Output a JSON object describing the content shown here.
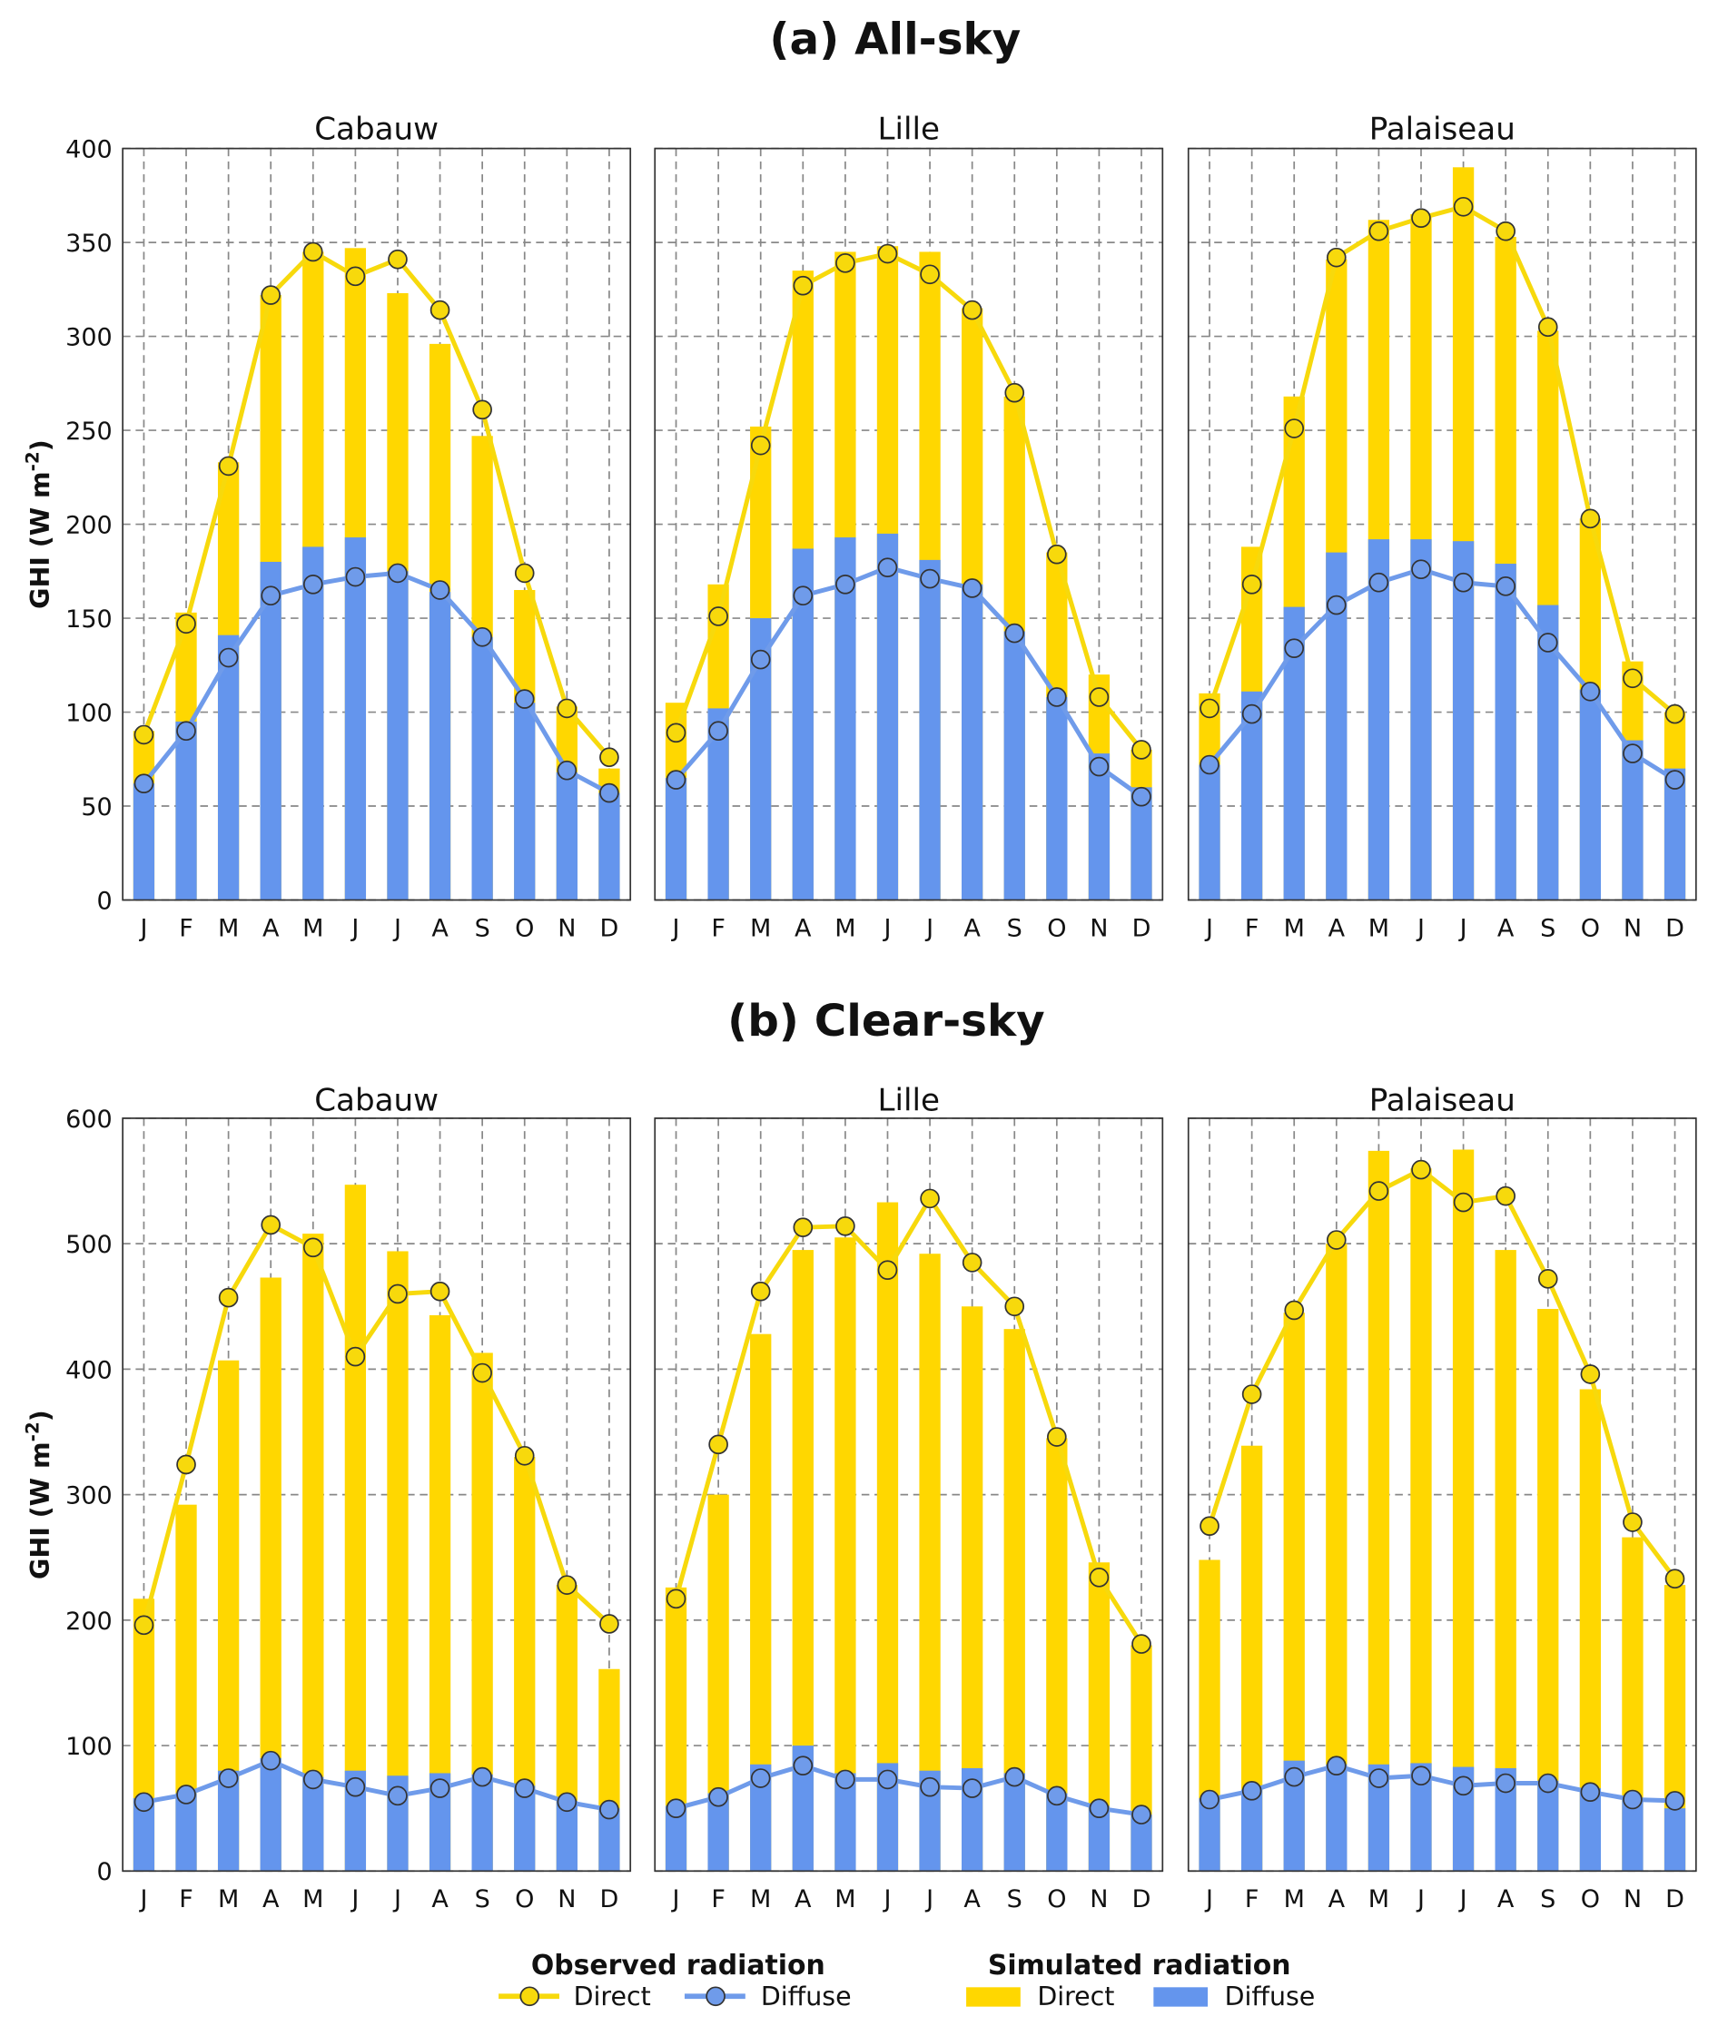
{
  "sections": [
    {
      "title": "(a) All-sky",
      "ylabel": "GHI (W m",
      "ylabel_sup": "-2",
      "ylabel_end": ")",
      "ylim": [
        0,
        400
      ],
      "yticks": [
        0,
        50,
        100,
        150,
        200,
        250,
        300,
        350,
        400
      ]
    },
    {
      "title": "(b) Clear-sky",
      "ylabel": "GHI (W m",
      "ylabel_sup": "-2",
      "ylabel_end": ")",
      "ylim": [
        0,
        600
      ],
      "yticks": [
        0,
        100,
        200,
        300,
        400,
        500,
        600
      ]
    }
  ],
  "legend": {
    "observed_title": "Observed radiation",
    "simulated_title": "Simulated radiation",
    "direct": "Direct",
    "diffuse": "Diffuse"
  },
  "colors": {
    "direct_bar": "#FFD700",
    "diffuse_bar": "#6495ED",
    "direct_line": "#F7D90C",
    "diffuse_line": "#6F9BEA",
    "marker_edge": "#333333"
  },
  "chart_data": [
    {
      "type": "bar+line",
      "section": 0,
      "title": "Cabauw",
      "categories": [
        "J",
        "F",
        "M",
        "A",
        "M",
        "J",
        "J",
        "A",
        "S",
        "O",
        "N",
        "D"
      ],
      "simulated_total": [
        90,
        153,
        233,
        322,
        345,
        347,
        323,
        296,
        247,
        165,
        103,
        70
      ],
      "simulated_diffuse": [
        62,
        95,
        141,
        180,
        188,
        193,
        175,
        164,
        140,
        105,
        68,
        57
      ],
      "observed_direct": [
        88,
        147,
        231,
        322,
        345,
        332,
        341,
        314,
        261,
        174,
        102,
        76
      ],
      "observed_diffuse": [
        62,
        90,
        129,
        162,
        168,
        172,
        174,
        165,
        140,
        107,
        69,
        57
      ]
    },
    {
      "type": "bar+line",
      "section": 0,
      "title": "Lille",
      "categories": [
        "J",
        "F",
        "M",
        "A",
        "M",
        "J",
        "J",
        "A",
        "S",
        "O",
        "N",
        "D"
      ],
      "simulated_total": [
        105,
        168,
        252,
        335,
        345,
        348,
        345,
        315,
        268,
        185,
        120,
        80
      ],
      "simulated_diffuse": [
        65,
        102,
        150,
        187,
        193,
        195,
        181,
        168,
        143,
        108,
        78,
        60
      ],
      "observed_direct": [
        89,
        151,
        242,
        327,
        339,
        344,
        333,
        314,
        270,
        184,
        108,
        80
      ],
      "observed_diffuse": [
        64,
        90,
        128,
        162,
        168,
        177,
        171,
        166,
        142,
        108,
        71,
        55
      ]
    },
    {
      "type": "bar+line",
      "section": 0,
      "title": "Palaiseau",
      "categories": [
        "J",
        "F",
        "M",
        "A",
        "M",
        "J",
        "J",
        "A",
        "S",
        "O",
        "N",
        "D"
      ],
      "simulated_total": [
        110,
        188,
        268,
        341,
        362,
        365,
        390,
        353,
        303,
        203,
        127,
        100
      ],
      "simulated_diffuse": [
        72,
        111,
        156,
        185,
        192,
        192,
        191,
        179,
        157,
        112,
        85,
        70
      ],
      "observed_direct": [
        102,
        168,
        251,
        342,
        356,
        363,
        369,
        356,
        305,
        203,
        118,
        99
      ],
      "observed_diffuse": [
        72,
        99,
        134,
        157,
        169,
        176,
        169,
        167,
        137,
        111,
        78,
        64
      ]
    },
    {
      "type": "bar+line",
      "section": 1,
      "title": "Cabauw",
      "categories": [
        "J",
        "F",
        "M",
        "A",
        "M",
        "J",
        "J",
        "A",
        "S",
        "O",
        "N",
        "D"
      ],
      "simulated_total": [
        217,
        292,
        407,
        473,
        508,
        547,
        494,
        443,
        413,
        330,
        228,
        161
      ],
      "simulated_diffuse": [
        58,
        62,
        80,
        90,
        75,
        80,
        76,
        78,
        77,
        68,
        56,
        50
      ],
      "observed_direct": [
        196,
        324,
        457,
        515,
        497,
        410,
        460,
        462,
        397,
        331,
        228,
        197
      ],
      "observed_diffuse": [
        55,
        61,
        74,
        88,
        73,
        67,
        60,
        66,
        75,
        66,
        55,
        49
      ]
    },
    {
      "type": "bar+line",
      "section": 1,
      "title": "Lille",
      "categories": [
        "J",
        "F",
        "M",
        "A",
        "M",
        "J",
        "J",
        "A",
        "S",
        "O",
        "N",
        "D"
      ],
      "simulated_total": [
        226,
        300,
        428,
        495,
        505,
        533,
        492,
        450,
        432,
        345,
        246,
        180
      ],
      "simulated_diffuse": [
        52,
        62,
        85,
        100,
        78,
        86,
        80,
        82,
        78,
        62,
        52,
        45
      ],
      "observed_direct": [
        217,
        340,
        462,
        513,
        514,
        479,
        536,
        485,
        450,
        346,
        234,
        181
      ],
      "observed_diffuse": [
        50,
        59,
        74,
        84,
        73,
        73,
        67,
        66,
        75,
        60,
        50,
        45
      ]
    },
    {
      "type": "bar+line",
      "section": 1,
      "title": "Palaiseau",
      "categories": [
        "J",
        "F",
        "M",
        "A",
        "M",
        "J",
        "J",
        "A",
        "S",
        "O",
        "N",
        "D"
      ],
      "simulated_total": [
        248,
        339,
        445,
        500,
        574,
        560,
        575,
        495,
        448,
        384,
        266,
        228
      ],
      "simulated_diffuse": [
        58,
        65,
        88,
        85,
        85,
        86,
        83,
        82,
        72,
        66,
        58,
        50
      ],
      "observed_direct": [
        275,
        380,
        447,
        503,
        542,
        559,
        533,
        538,
        472,
        396,
        278,
        233
      ],
      "observed_diffuse": [
        57,
        64,
        75,
        84,
        74,
        76,
        68,
        70,
        70,
        63,
        57,
        56
      ]
    }
  ]
}
